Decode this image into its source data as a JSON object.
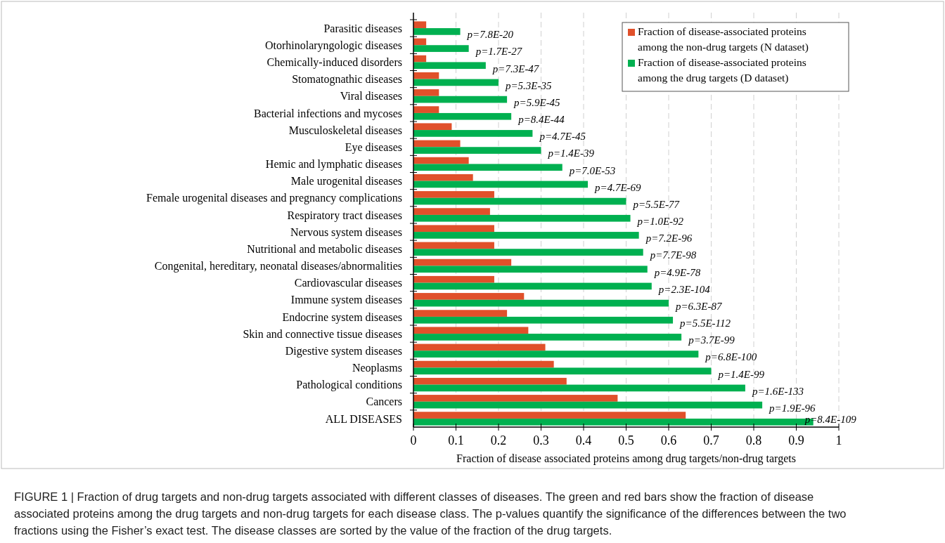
{
  "chart_data": {
    "type": "bar",
    "orientation": "horizontal",
    "xlabel": "Fraction of disease associated proteins among drug targets/non-drug targets",
    "categories": [
      "Parasitic diseases",
      "Otorhinolaryngologic diseases",
      "Chemically-induced disorders",
      "Stomatognathic diseases",
      "Viral diseases",
      "Bacterial infections and mycoses",
      "Musculoskeletal diseases",
      "Eye diseases",
      "Hemic and lymphatic diseases",
      "Male urogenital diseases",
      "Female urogenital diseases and pregnancy complications",
      "Respiratory tract diseases",
      "Nervous system diseases",
      "Nutritional and metabolic diseases",
      "Congenital, hereditary, neonatal diseases/abnormalities",
      "Cardiovascular diseases",
      "Immune system diseases",
      "Endocrine system diseases",
      "Skin and connective tissue diseases",
      "Digestive system diseases",
      "Neoplasms",
      "Pathological conditions",
      "Cancers",
      "ALL DISEASES"
    ],
    "series": [
      {
        "name": "Fraction of disease-associated proteins among the non-drug targets (N dataset)",
        "color": "#e0502a",
        "values": [
          0.03,
          0.03,
          0.03,
          0.06,
          0.06,
          0.06,
          0.09,
          0.11,
          0.13,
          0.14,
          0.19,
          0.18,
          0.19,
          0.19,
          0.23,
          0.19,
          0.26,
          0.22,
          0.27,
          0.31,
          0.33,
          0.36,
          0.48,
          0.64
        ]
      },
      {
        "name": "Fraction of disease-associated proteins among the drug targets (D dataset)",
        "color": "#00b050",
        "values": [
          0.11,
          0.13,
          0.17,
          0.2,
          0.22,
          0.23,
          0.28,
          0.3,
          0.35,
          0.41,
          0.5,
          0.51,
          0.53,
          0.54,
          0.55,
          0.56,
          0.6,
          0.61,
          0.63,
          0.67,
          0.7,
          0.78,
          0.82,
          0.94
        ],
        "value_labels": [
          "p=7.8E-20",
          "p=1.7E-27",
          "p=7.3E-47",
          "p=5.3E-35",
          "p=5.9E-45",
          "p=8.4E-44",
          "p=4.7E-45",
          "p=1.4E-39",
          "p=7.0E-53",
          "p=4.7E-69",
          "p=5.5E-77",
          "p=1.0E-92",
          "p=7.2E-96",
          "p=7.7E-98",
          "p=4.9E-78",
          "p=2.3E-104",
          "p=6.3E-87",
          "p=5.5E-112",
          "p=3.7E-99",
          "p=6.8E-100",
          "p=1.4E-99",
          "p=1.6E-133",
          "p=1.9E-96",
          "p=8.4E-109"
        ]
      }
    ],
    "xlim": [
      0,
      1
    ],
    "xticks": [
      0,
      0.1,
      0.2,
      0.3,
      0.4,
      0.5,
      0.6,
      0.7,
      0.8,
      0.9,
      1
    ],
    "grid": "x",
    "legend": "top right",
    "annotations": [
      "FIGURE 1 | Fraction of drug targets and non-drug targets associated with different classes of diseases. The green and red bars show the fraction of disease associated proteins among the drug targets and non-drug targets for each disease class. The p-values quantify the significance of the differences between the two fractions using the Fisher’s exact test. The disease classes are sorted by the value of the fraction of the drug targets."
    ]
  }
}
